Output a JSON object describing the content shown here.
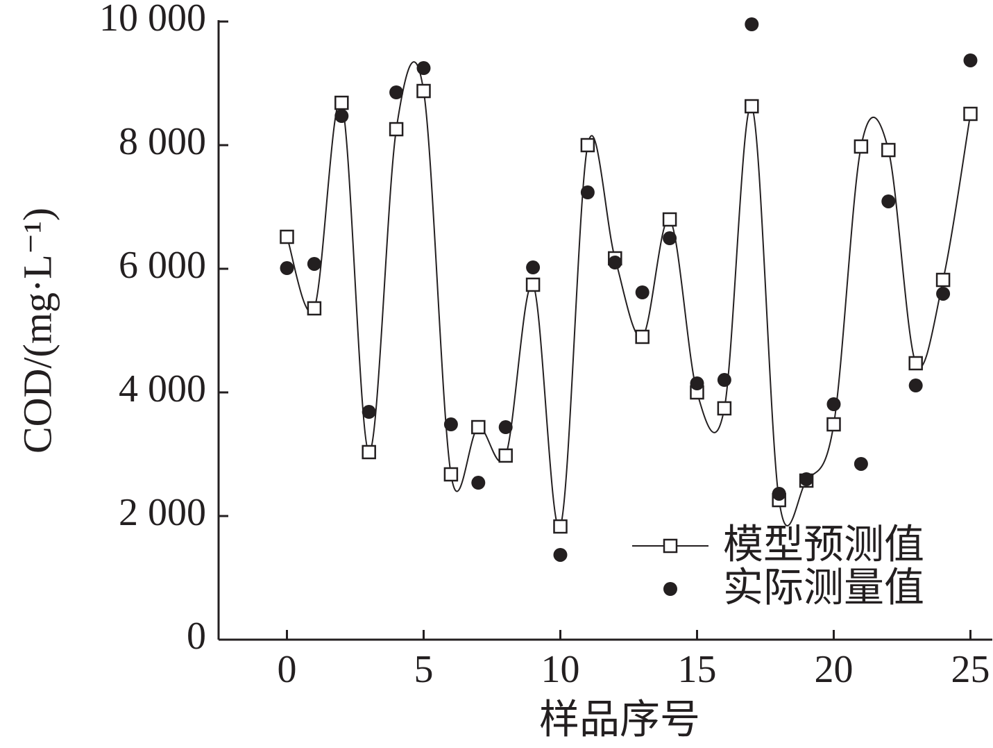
{
  "chart_data": {
    "type": "line",
    "x_label": "样品序号",
    "y_label": "COD/(mg·L⁻¹)",
    "x": [
      0,
      1,
      2,
      3,
      4,
      5,
      6,
      7,
      8,
      9,
      10,
      11,
      12,
      13,
      14,
      15,
      16,
      17,
      18,
      19,
      20,
      21,
      22,
      23,
      24,
      25
    ],
    "series": [
      {
        "name": "模型预测值",
        "color": "#231f20",
        "marker": "square",
        "line": true,
        "values": [
          6517,
          5360,
          8685,
          3034,
          8258,
          8876,
          2674,
          3438,
          2978,
          5742,
          1831,
          8000,
          6169,
          4899,
          6798,
          4000,
          3742,
          8629,
          2258,
          2573,
          3483,
          7978,
          7921,
          4472,
          5820,
          8506
        ]
      },
      {
        "name": "实际测量值",
        "color": "#231f20",
        "marker": "circle",
        "line": false,
        "values": [
          6011,
          6079,
          8472,
          3685,
          8854,
          9247,
          3483,
          2539,
          3438,
          6022,
          1371,
          7236,
          6101,
          5618,
          6494,
          4146,
          4202,
          9955,
          2360,
          2596,
          3809,
          2843,
          7090,
          4112,
          5596,
          9371
        ]
      }
    ],
    "xlim": [
      -2.5,
      25.8
    ],
    "ylim": [
      0,
      10000
    ],
    "xticks": [
      0,
      5,
      10,
      15,
      20,
      25
    ],
    "yticks": [
      0,
      {
        "value": 2000,
        "label": "2 000"
      },
      {
        "value": 4000,
        "label": "4 000"
      },
      {
        "value": 6000,
        "label": "6 000"
      },
      {
        "value": 8000,
        "label": "8 000"
      },
      {
        "value": 10000,
        "label": "10 000"
      }
    ],
    "legend": "lower right",
    "grid": false
  }
}
